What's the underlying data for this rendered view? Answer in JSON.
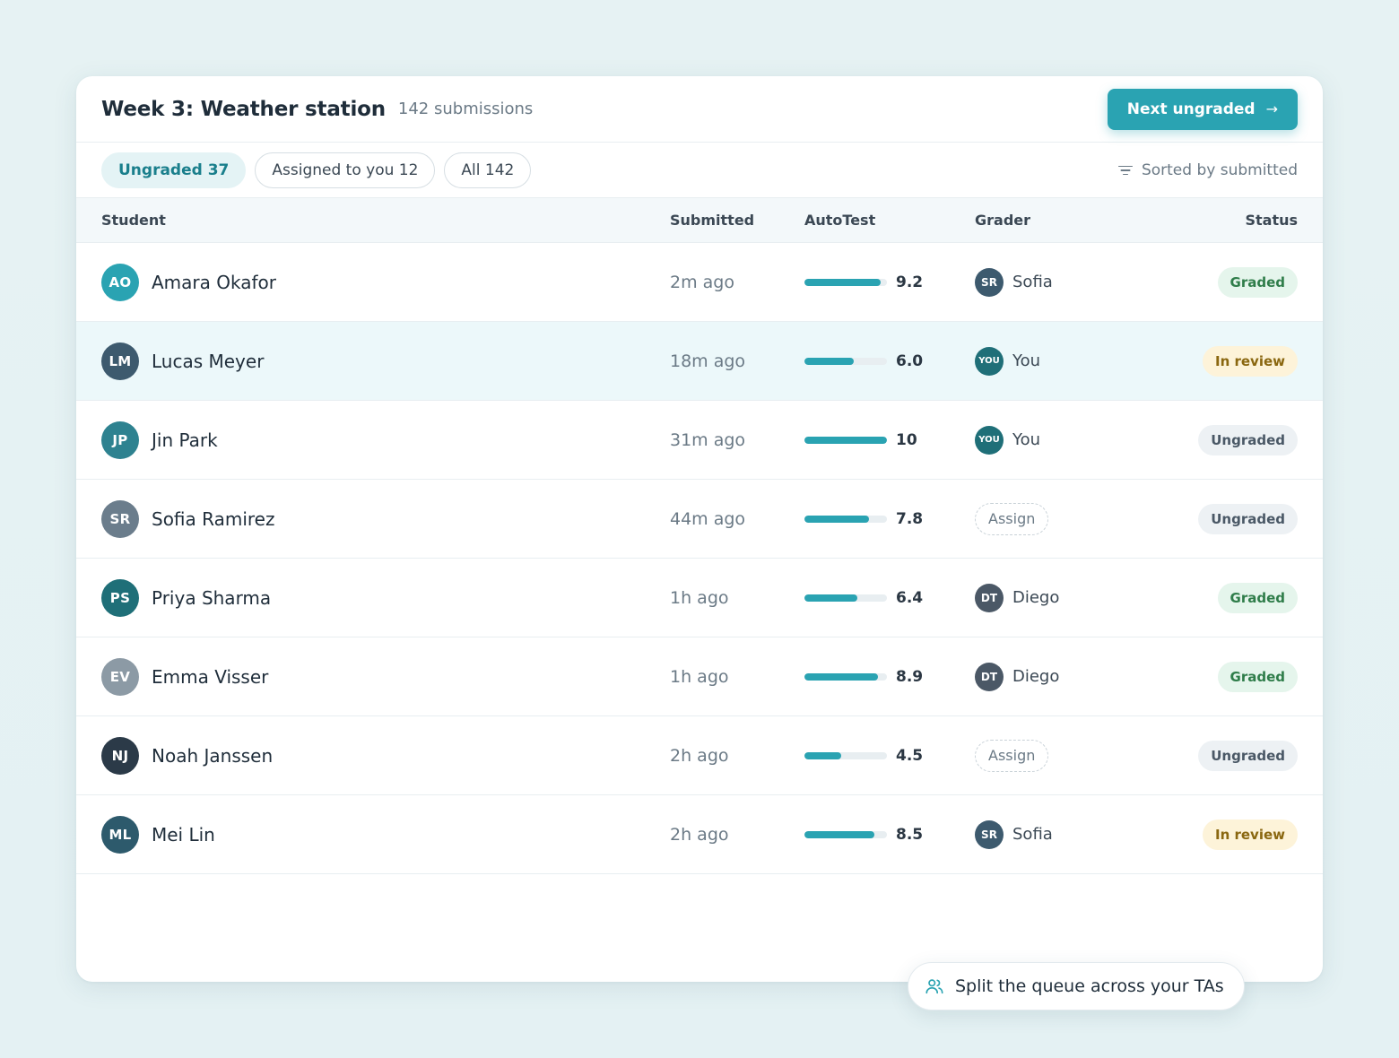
{
  "header": {
    "title": "Week 3: Weather station",
    "count": "142 submissions",
    "next_label": "Next ungraded",
    "next_arrow": "→"
  },
  "filters": {
    "chips": [
      "Ungraded 37",
      "Assigned to you 12",
      "All 142"
    ],
    "active": 0,
    "sort_label": "Sorted by submitted"
  },
  "columns": {
    "student": "Student",
    "submitted": "Submitted",
    "autotest": "AutoTest",
    "grader": "Grader",
    "status": "Status"
  },
  "colors": {
    "accent": "#2aa3b2",
    "graded": "#2f7d4a",
    "in_review": "#8a6710",
    "ungraded": "#4a5866"
  },
  "rows": [
    {
      "initials": "AO",
      "avatar_color": "#2aa3b2",
      "name": "Amara Okafor",
      "submitted": "2m ago",
      "score": "9.2",
      "score_value": 9.2,
      "grader_initials": "SR",
      "grader_color": "#3d5a6e",
      "grader": "Sofia",
      "status": "Graded",
      "status_kind": "graded",
      "highlight": false
    },
    {
      "initials": "LM",
      "avatar_color": "#3d5a6e",
      "name": "Lucas Meyer",
      "submitted": "18m ago",
      "score": "6.0",
      "score_value": 6.0,
      "grader_initials": "YOU",
      "grader_color": "#1f6f78",
      "grader": "You",
      "status": "In review",
      "status_kind": "review",
      "highlight": true
    },
    {
      "initials": "JP",
      "avatar_color": "#2e8290",
      "name": "Jin Park",
      "submitted": "31m ago",
      "score": "10",
      "score_value": 10,
      "grader_initials": "YOU",
      "grader_color": "#1f6f78",
      "grader": "You",
      "status": "Ungraded",
      "status_kind": "ungraded",
      "highlight": false
    },
    {
      "initials": "SR",
      "avatar_color": "#6b7d8c",
      "name": "Sofia Ramirez",
      "submitted": "44m ago",
      "score": "7.8",
      "score_value": 7.8,
      "grader_initials": "",
      "grader_color": "",
      "grader": "Assign",
      "status": "Ungraded",
      "status_kind": "ungraded",
      "highlight": false
    },
    {
      "initials": "PS",
      "avatar_color": "#1f6f78",
      "name": "Priya Sharma",
      "submitted": "1h ago",
      "score": "6.4",
      "score_value": 6.4,
      "grader_initials": "DT",
      "grader_color": "#4b5866",
      "grader": "Diego",
      "status": "Graded",
      "status_kind": "graded",
      "highlight": false
    },
    {
      "initials": "EV",
      "avatar_color": "#8c9aa5",
      "name": "Emma Visser",
      "submitted": "1h ago",
      "score": "8.9",
      "score_value": 8.9,
      "grader_initials": "DT",
      "grader_color": "#4b5866",
      "grader": "Diego",
      "status": "Graded",
      "status_kind": "graded",
      "highlight": false
    },
    {
      "initials": "NJ",
      "avatar_color": "#2b3a48",
      "name": "Noah Janssen",
      "submitted": "2h ago",
      "score": "4.5",
      "score_value": 4.5,
      "grader_initials": "",
      "grader_color": "",
      "grader": "Assign",
      "status": "Ungraded",
      "status_kind": "ungraded",
      "highlight": false
    },
    {
      "initials": "ML",
      "avatar_color": "#2d5a6c",
      "name": "Mei Lin",
      "submitted": "2h ago",
      "score": "8.5",
      "score_value": 8.5,
      "grader_initials": "SR",
      "grader_color": "#3d5a6e",
      "grader": "Sofia",
      "status": "In review",
      "status_kind": "review",
      "highlight": false
    }
  ],
  "toast": {
    "icon": "users-icon",
    "label": "Split the queue across your TAs"
  }
}
